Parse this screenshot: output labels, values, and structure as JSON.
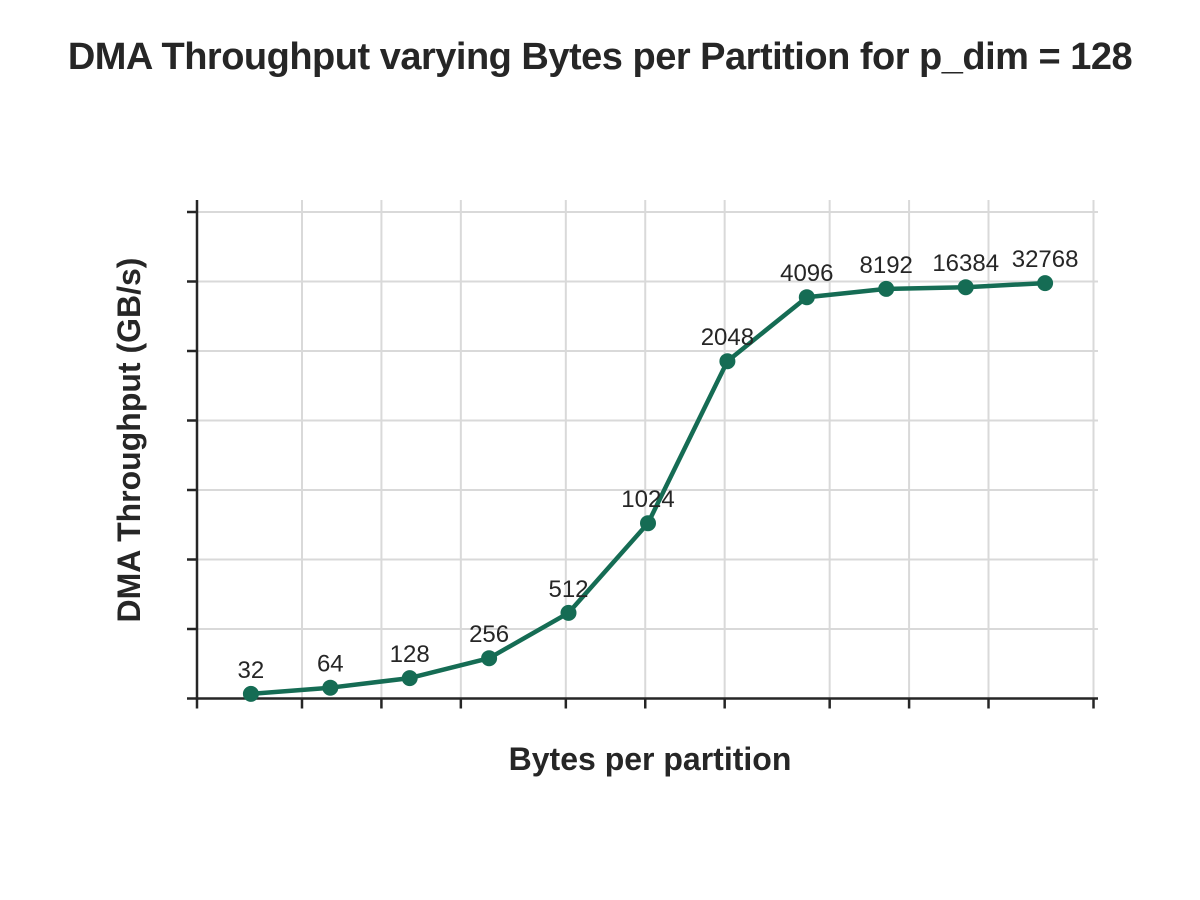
{
  "chart_data": {
    "type": "line",
    "title": "DMA Throughput varying Bytes per Partition for p_dim = 128",
    "xlabel": "Bytes per partition",
    "ylabel": "DMA Throughput (GB/s)",
    "x_scale": "log",
    "x_range": [
      20,
      52000
    ],
    "x_ticks": [
      20,
      50,
      100,
      200,
      500,
      1000,
      2000,
      5000,
      10000,
      20000,
      50000
    ],
    "x_tick_labels_shown": false,
    "y_tick_labels_shown": false,
    "y_axis_note": "y axis has tick marks and gridlines but no numeric labels; values below are relative to the saturation plateau (max = 1.0)",
    "y_range_relative": [
      0,
      1.2
    ],
    "y_tick_count": 8,
    "grid": true,
    "legend": false,
    "series": [
      {
        "name": "DMA throughput",
        "x": [
          32,
          64,
          128,
          256,
          512,
          1024,
          2048,
          4096,
          8192,
          16384,
          32768
        ],
        "y_relative": [
          0.011,
          0.026,
          0.049,
          0.097,
          0.206,
          0.422,
          0.812,
          0.966,
          0.986,
          0.99,
          1.0
        ],
        "point_labels": [
          "32",
          "64",
          "128",
          "256",
          "512",
          "1024",
          "2048",
          "4096",
          "8192",
          "16384",
          "32768"
        ],
        "color": "#156C54"
      }
    ],
    "colors": {
      "series_line": "#156C54",
      "marker_fill": "#156C54",
      "axis_and_text": "#262626",
      "gridline": "#D9D9D9",
      "background": "#FFFFFF"
    }
  }
}
